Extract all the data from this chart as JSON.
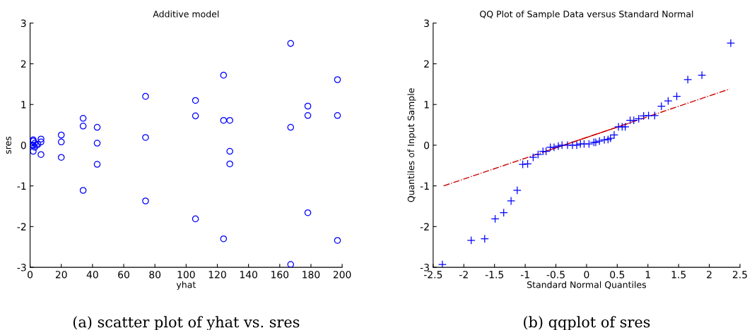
{
  "chart_data": [
    {
      "type": "scatter",
      "title": "Additive model",
      "xlabel": "yhat",
      "ylabel": "sres",
      "marker": "circle",
      "grid": false,
      "series": [
        {
          "color": "#0000ff",
          "x": [
            1,
            2,
            2,
            2,
            3,
            3,
            4,
            5,
            2,
            7,
            7,
            7,
            20,
            20,
            20,
            34,
            34,
            34,
            43,
            43,
            43,
            74,
            74,
            74,
            106,
            106,
            106,
            124,
            124,
            124,
            128,
            128,
            128,
            167,
            167,
            167,
            178,
            178,
            178,
            197,
            197,
            197
          ],
          "values": [
            0,
            0.1,
            0,
            -0.15,
            0.05,
            -0.05,
            0,
            0.02,
            0.13,
            0.15,
            0.08,
            -0.23,
            0.25,
            0.08,
            -0.3,
            0.66,
            0.47,
            -1.11,
            0.44,
            0.05,
            -0.47,
            1.2,
            0.19,
            -1.37,
            1.1,
            0.72,
            -1.81,
            1.72,
            0.61,
            -2.3,
            0.61,
            -0.15,
            -0.46,
            2.5,
            0.44,
            -2.93,
            0.96,
            0.73,
            -1.66,
            1.61,
            0.73,
            -2.34
          ]
        }
      ],
      "xlim": [
        0,
        200
      ],
      "xticks": [
        0,
        20,
        40,
        60,
        80,
        100,
        120,
        140,
        160,
        180,
        200
      ],
      "ylim": [
        -3,
        3
      ],
      "yticks": [
        -3,
        -2,
        -1,
        0,
        1,
        2,
        3
      ],
      "annotations": [
        "(a) scatter plot of yhat vs. sres"
      ]
    },
    {
      "type": "scatter",
      "title": "QQ Plot of Sample Data versus Standard Normal",
      "xlabel": "Standard Normal Quantiles",
      "ylabel": "Quantiles of Input Sample",
      "marker": "cross",
      "grid": false,
      "series": [
        {
          "color": "#cc0000",
          "type": "line",
          "marker": "none",
          "line_style": "dashdot",
          "x": [
            -2.33,
            2.33
          ],
          "values": [
            -1.0,
            1.38
          ]
        },
        {
          "color": "#cc0000",
          "type": "line",
          "marker": "none",
          "line_style": "solid",
          "x": [
            -0.67,
            0.67
          ],
          "values": [
            -0.15,
            0.53
          ]
        },
        {
          "color": "#0000ff",
          "x": [
            -2.35,
            -1.88,
            -1.66,
            -1.49,
            -1.35,
            -1.23,
            -1.13,
            -1.04,
            -0.96,
            -0.87,
            -0.79,
            -0.71,
            -0.66,
            -0.59,
            -0.53,
            -0.46,
            -0.4,
            -0.31,
            -0.23,
            -0.16,
            -0.1,
            -0.04,
            0.04,
            0.12,
            0.15,
            0.21,
            0.29,
            0.35,
            0.39,
            0.45,
            0.52,
            0.58,
            0.63,
            0.71,
            0.77,
            0.85,
            0.93,
            1.01,
            1.11,
            1.22,
            1.33,
            1.47,
            1.65,
            1.88,
            2.35
          ],
          "values": [
            -2.93,
            -2.34,
            -2.3,
            -1.81,
            -1.66,
            -1.37,
            -1.11,
            -0.47,
            -0.46,
            -0.3,
            -0.23,
            -0.15,
            -0.15,
            -0.05,
            -0.05,
            -0.02,
            0,
            0,
            0,
            0,
            0.03,
            0.03,
            0.03,
            0.07,
            0.07,
            0.1,
            0.13,
            0.14,
            0.17,
            0.25,
            0.45,
            0.45,
            0.45,
            0.61,
            0.61,
            0.65,
            0.72,
            0.73,
            0.73,
            0.96,
            1.09,
            1.2,
            1.61,
            1.72,
            2.51
          ]
        }
      ],
      "xlim": [
        -2.5,
        2.5
      ],
      "xticks": [
        -2.5,
        -2,
        -1.5,
        -1,
        -0.5,
        0,
        0.5,
        1,
        1.5,
        2,
        2.5
      ],
      "ylim": [
        -3,
        3
      ],
      "yticks": [
        -3,
        -2,
        -1,
        0,
        1,
        2,
        3
      ],
      "annotations": [
        "(b) qqplot of sres"
      ]
    }
  ]
}
